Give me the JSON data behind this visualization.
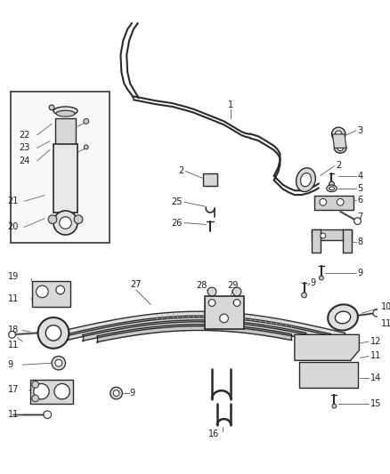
{
  "background_color": "#ffffff",
  "line_color": "#2a2a2a",
  "fig_width": 4.38,
  "fig_height": 5.33,
  "dpi": 100
}
